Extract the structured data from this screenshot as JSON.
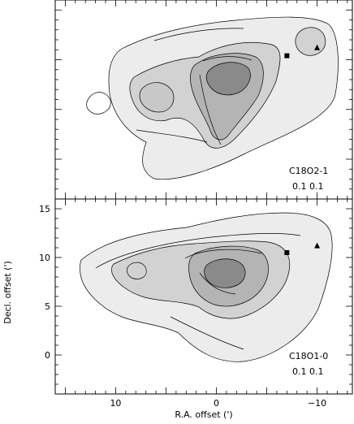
{
  "chart_data": [
    {
      "type": "contour",
      "panel": "top",
      "label_lines": [
        "C18O2-1",
        "0.1 0.1"
      ],
      "xlim": [
        16,
        -13.5
      ],
      "ylim": [
        -4,
        16
      ],
      "show_x_ticklabels": false,
      "show_y_ticklabels": false,
      "markers": [
        {
          "symbol": "square",
          "x": -7,
          "y": 10.4
        },
        {
          "symbol": "triangle",
          "x": -10,
          "y": 11.2
        }
      ],
      "colors": {
        "fill_light": "#ececec",
        "fill_mid": "#d2d2d2",
        "fill_dark": "#b4b4b4",
        "fill_peak": "#8a8a8a",
        "line": "#000000"
      }
    },
    {
      "type": "contour",
      "panel": "bottom",
      "label_lines": [
        "C18O1-0",
        "0.1 0.1"
      ],
      "xlim": [
        16,
        -13.5
      ],
      "ylim": [
        -4,
        16
      ],
      "show_x_ticklabels": true,
      "show_y_ticklabels": true,
      "x_ticks": [
        10,
        0,
        -10
      ],
      "x_tick_labels": [
        "10",
        "0",
        "−10"
      ],
      "y_ticks": [
        0,
        5,
        10,
        15
      ],
      "y_tick_labels": [
        "0",
        "5",
        "10",
        "15"
      ],
      "xlabel": "R.A. offset (')",
      "ylabel": "Decl. offset (')",
      "markers": [
        {
          "symbol": "square",
          "x": -7,
          "y": 10.5
        },
        {
          "symbol": "triangle",
          "x": -10,
          "y": 11.2
        }
      ],
      "colors": {
        "fill_light": "#ececec",
        "fill_mid": "#d2d2d2",
        "fill_dark": "#b4b4b4",
        "fill_peak": "#8a8a8a",
        "line": "#000000"
      }
    }
  ]
}
